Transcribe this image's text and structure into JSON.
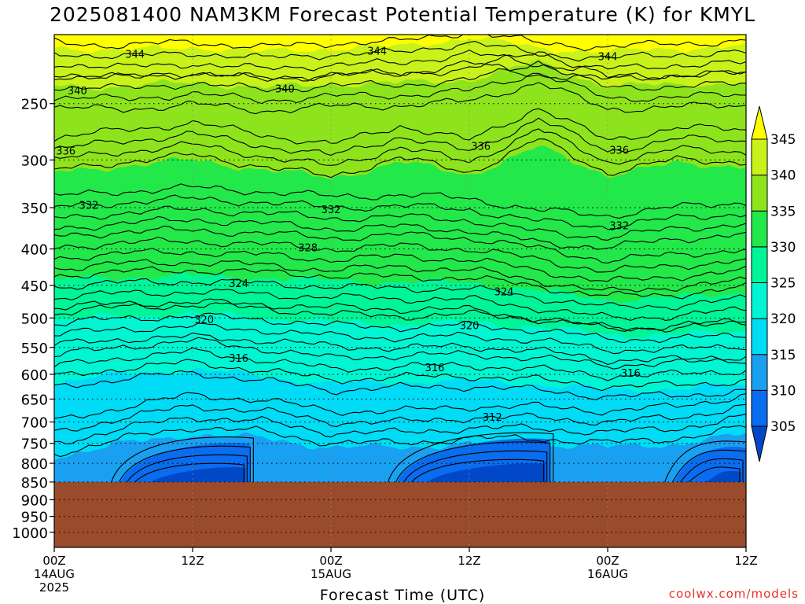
{
  "title": "2025081400 NAM3KM Forecast Potential Temperature (K) for KMYL",
  "x_axis_title": "Forecast Time (UTC)",
  "credit": "coolwx.com/models",
  "colors": {
    "c_300_305": "#0048c8",
    "c_305_310": "#0a6cee",
    "c_310_315": "#1aa0f0",
    "c_315_320": "#00dcf6",
    "c_320_325": "#00f6d2",
    "c_325_330": "#00f596",
    "c_330_335": "#22e84a",
    "c_335_340": "#8ee41c",
    "c_340_345": "#c8f21a",
    "c_345_350": "#ffff00",
    "ground": "#9a4b2b"
  },
  "chart_data": {
    "type": "contour",
    "variable": "Potential Temperature (K)",
    "y_axis": {
      "type": "log-pressure",
      "range": [
        1050,
        200
      ],
      "ticks": [
        250,
        300,
        350,
        400,
        450,
        500,
        550,
        600,
        650,
        700,
        750,
        800,
        850,
        900,
        950,
        1000
      ],
      "grid": "dotted"
    },
    "x_axis": {
      "range_hours": [
        0,
        60
      ],
      "ticks": [
        {
          "hour": 0,
          "lines": [
            "00Z",
            "14AUG",
            "2025"
          ]
        },
        {
          "hour": 12,
          "lines": [
            "12Z"
          ]
        },
        {
          "hour": 24,
          "lines": [
            "00Z",
            "15AUG"
          ]
        },
        {
          "hour": 36,
          "lines": [
            "12Z"
          ]
        },
        {
          "hour": 48,
          "lines": [
            "00Z",
            "16AUG"
          ]
        },
        {
          "hour": 60,
          "lines": [
            "12Z"
          ]
        }
      ],
      "grid": "dotted"
    },
    "ground_surface_hpa": 850,
    "colorbar": {
      "levels": [
        305,
        310,
        315,
        320,
        325,
        330,
        335,
        340,
        345
      ],
      "extend": "both"
    },
    "contour_labels": [
      {
        "value": 344,
        "points": [
          [
            7,
            344
          ],
          [
            28,
            344
          ],
          [
            48,
            344
          ]
        ]
      },
      {
        "value": 340,
        "points": [
          [
            2,
            340
          ],
          [
            20,
            340
          ]
        ]
      },
      {
        "value": 336,
        "points": [
          [
            1,
            336
          ],
          [
            37,
            336
          ],
          [
            49,
            336
          ]
        ]
      },
      {
        "value": 332,
        "points": [
          [
            3,
            332
          ],
          [
            24,
            332
          ],
          [
            49,
            332
          ]
        ]
      },
      {
        "value": 328,
        "points": [
          [
            22,
            328
          ]
        ]
      },
      {
        "value": 324,
        "points": [
          [
            16,
            324
          ],
          [
            39,
            324
          ]
        ]
      },
      {
        "value": 320,
        "points": [
          [
            13,
            320
          ],
          [
            36,
            320
          ]
        ]
      },
      {
        "value": 316,
        "points": [
          [
            16,
            316
          ],
          [
            33,
            316
          ],
          [
            50,
            316
          ]
        ]
      },
      {
        "value": 312,
        "points": [
          [
            38,
            312
          ]
        ]
      }
    ],
    "isentrope_profiles": [
      {
        "value": 344,
        "hours": [
          0,
          6,
          12,
          18,
          24,
          30,
          36,
          42,
          48,
          54,
          60
        ],
        "p": [
          212,
          215,
          212,
          216,
          213,
          212,
          205,
          213,
          216,
          213,
          212
        ]
      },
      {
        "value": 340,
        "hours": [
          0,
          6,
          12,
          18,
          24,
          30,
          36,
          42,
          48,
          54,
          60
        ],
        "p": [
          237,
          238,
          234,
          239,
          236,
          235,
          232,
          218,
          238,
          236,
          235
        ]
      },
      {
        "value": 336,
        "hours": [
          0,
          6,
          12,
          18,
          24,
          30,
          36,
          42,
          48,
          54,
          60
        ],
        "p": [
          290,
          282,
          276,
          286,
          296,
          278,
          292,
          262,
          292,
          280,
          282
        ]
      },
      {
        "value": 332,
        "hours": [
          0,
          6,
          12,
          18,
          24,
          30,
          36,
          42,
          48,
          54,
          60
        ],
        "p": [
          350,
          344,
          340,
          344,
          350,
          348,
          352,
          366,
          372,
          362,
          356
        ]
      },
      {
        "value": 328,
        "hours": [
          0,
          6,
          12,
          18,
          24,
          30,
          36,
          42,
          48,
          54,
          60
        ],
        "p": [
          398,
          392,
          390,
          394,
          400,
          396,
          400,
          414,
          430,
          422,
          415
        ]
      },
      {
        "value": 324,
        "hours": [
          0,
          6,
          12,
          18,
          24,
          30,
          36,
          42,
          48,
          54,
          60
        ],
        "p": [
          452,
          446,
          444,
          447,
          452,
          454,
          455,
          468,
          483,
          480,
          470
        ]
      },
      {
        "value": 320,
        "hours": [
          0,
          6,
          12,
          18,
          24,
          30,
          36,
          42,
          48,
          54,
          60
        ],
        "p": [
          510,
          500,
          497,
          502,
          512,
          515,
          512,
          520,
          535,
          535,
          528
        ]
      },
      {
        "value": 316,
        "hours": [
          0,
          6,
          12,
          18,
          24,
          30,
          36,
          42,
          48,
          54,
          60
        ],
        "p": [
          585,
          568,
          558,
          572,
          590,
          585,
          583,
          590,
          603,
          600,
          592
        ]
      },
      {
        "value": 312,
        "hours": [
          0,
          6,
          12,
          18,
          24,
          30,
          36,
          42,
          48,
          54,
          60
        ],
        "p": [
          725,
          690,
          665,
          675,
          700,
          700,
          690,
          690,
          700,
          690,
          665
        ]
      }
    ],
    "low_level_minima": [
      {
        "hours": [
          7,
          17
        ],
        "p": 800,
        "min_value": 305
      },
      {
        "hours": [
          31,
          43
        ],
        "p": 790,
        "min_value": 305
      },
      {
        "hours": [
          55,
          60
        ],
        "p": 810,
        "min_value": 308
      }
    ],
    "filled_band_tops_hpa": {
      "345": 208,
      "340": 234,
      "335": 302,
      "330": 445,
      "325": 510,
      "320": 615,
      "315": 760
    }
  }
}
